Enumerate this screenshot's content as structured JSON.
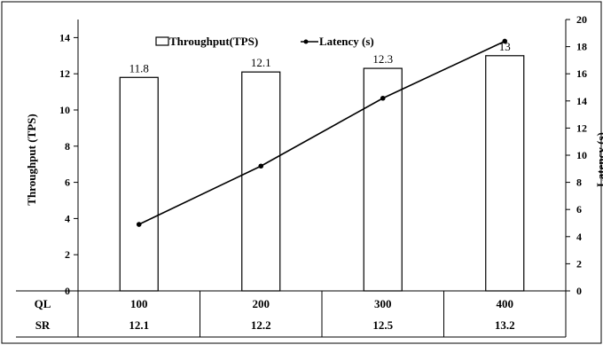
{
  "chart_data": {
    "type": "bar",
    "categories": [
      "100",
      "200",
      "300",
      "400"
    ],
    "series": [
      {
        "name": "Throughput(TPS)",
        "type": "bar",
        "axis": "left",
        "values": [
          11.8,
          12.1,
          12.3,
          13
        ],
        "labels": [
          "11.8",
          "12.1",
          "12.3",
          "13"
        ]
      },
      {
        "name": "Latency (s)",
        "type": "line",
        "axis": "right",
        "values": [
          4.9,
          9.2,
          14.2,
          18.4
        ]
      }
    ],
    "ylabel_left": "Throughput (TPS)",
    "ylabel_right": "Latency (s)",
    "ylim_left": [
      0,
      15
    ],
    "yticks_left": [
      "0",
      "2",
      "4",
      "6",
      "8",
      "10",
      "12",
      "14"
    ],
    "ylim_right": [
      0,
      20
    ],
    "yticks_right": [
      "0",
      "2",
      "4",
      "6",
      "8",
      "10",
      "12",
      "14",
      "16",
      "18",
      "20"
    ],
    "legend_position": "top-center",
    "grid": false,
    "table": {
      "rows": [
        {
          "label": "QL",
          "values": [
            "100",
            "200",
            "300",
            "400"
          ]
        },
        {
          "label": "SR",
          "values": [
            "12.1",
            "12.2",
            "12.5",
            "13.2"
          ]
        }
      ]
    }
  }
}
